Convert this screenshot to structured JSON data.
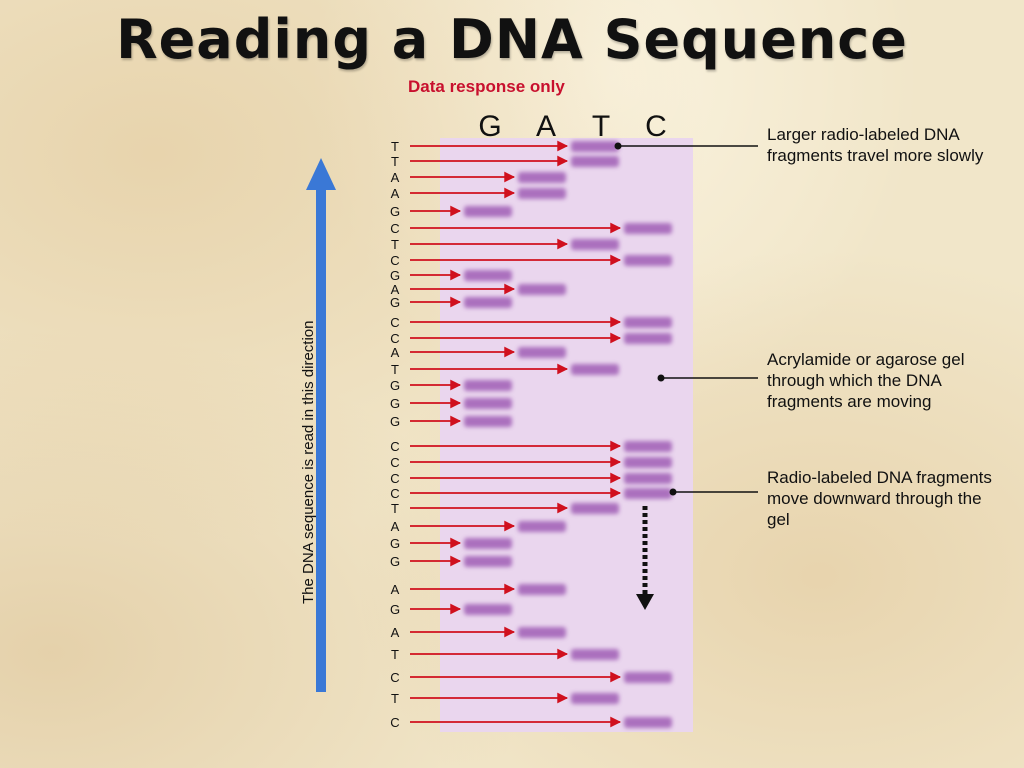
{
  "title": "Reading a DNA Sequence",
  "subtitle": "Data response only",
  "direction_label": "The DNA sequence is read in this direction",
  "lanes": [
    "G",
    "A",
    "T",
    "C"
  ],
  "sequence": [
    "T",
    "T",
    "A",
    "A",
    "G",
    "C",
    "T",
    "C",
    "G",
    "A",
    "G",
    "C",
    "C",
    "A",
    "T",
    "G",
    "G",
    "G",
    "C",
    "C",
    "C",
    "C",
    "T",
    "A",
    "G",
    "G",
    "A",
    "G",
    "A",
    "T",
    "C",
    "T",
    "C"
  ],
  "annotations": [
    "Larger radio-labeled DNA fragments travel more slowly",
    "Acrylamide or agarose gel through which the DNA fragments are moving",
    "Radio-labeled DNA fragments move downward through the gel"
  ],
  "colors": {
    "arrow": "#d0101e",
    "direction_arrow": "#3a78d6",
    "gel": "#ead6ee",
    "band": "#a05fb6",
    "subtitle": "#c8102e"
  }
}
